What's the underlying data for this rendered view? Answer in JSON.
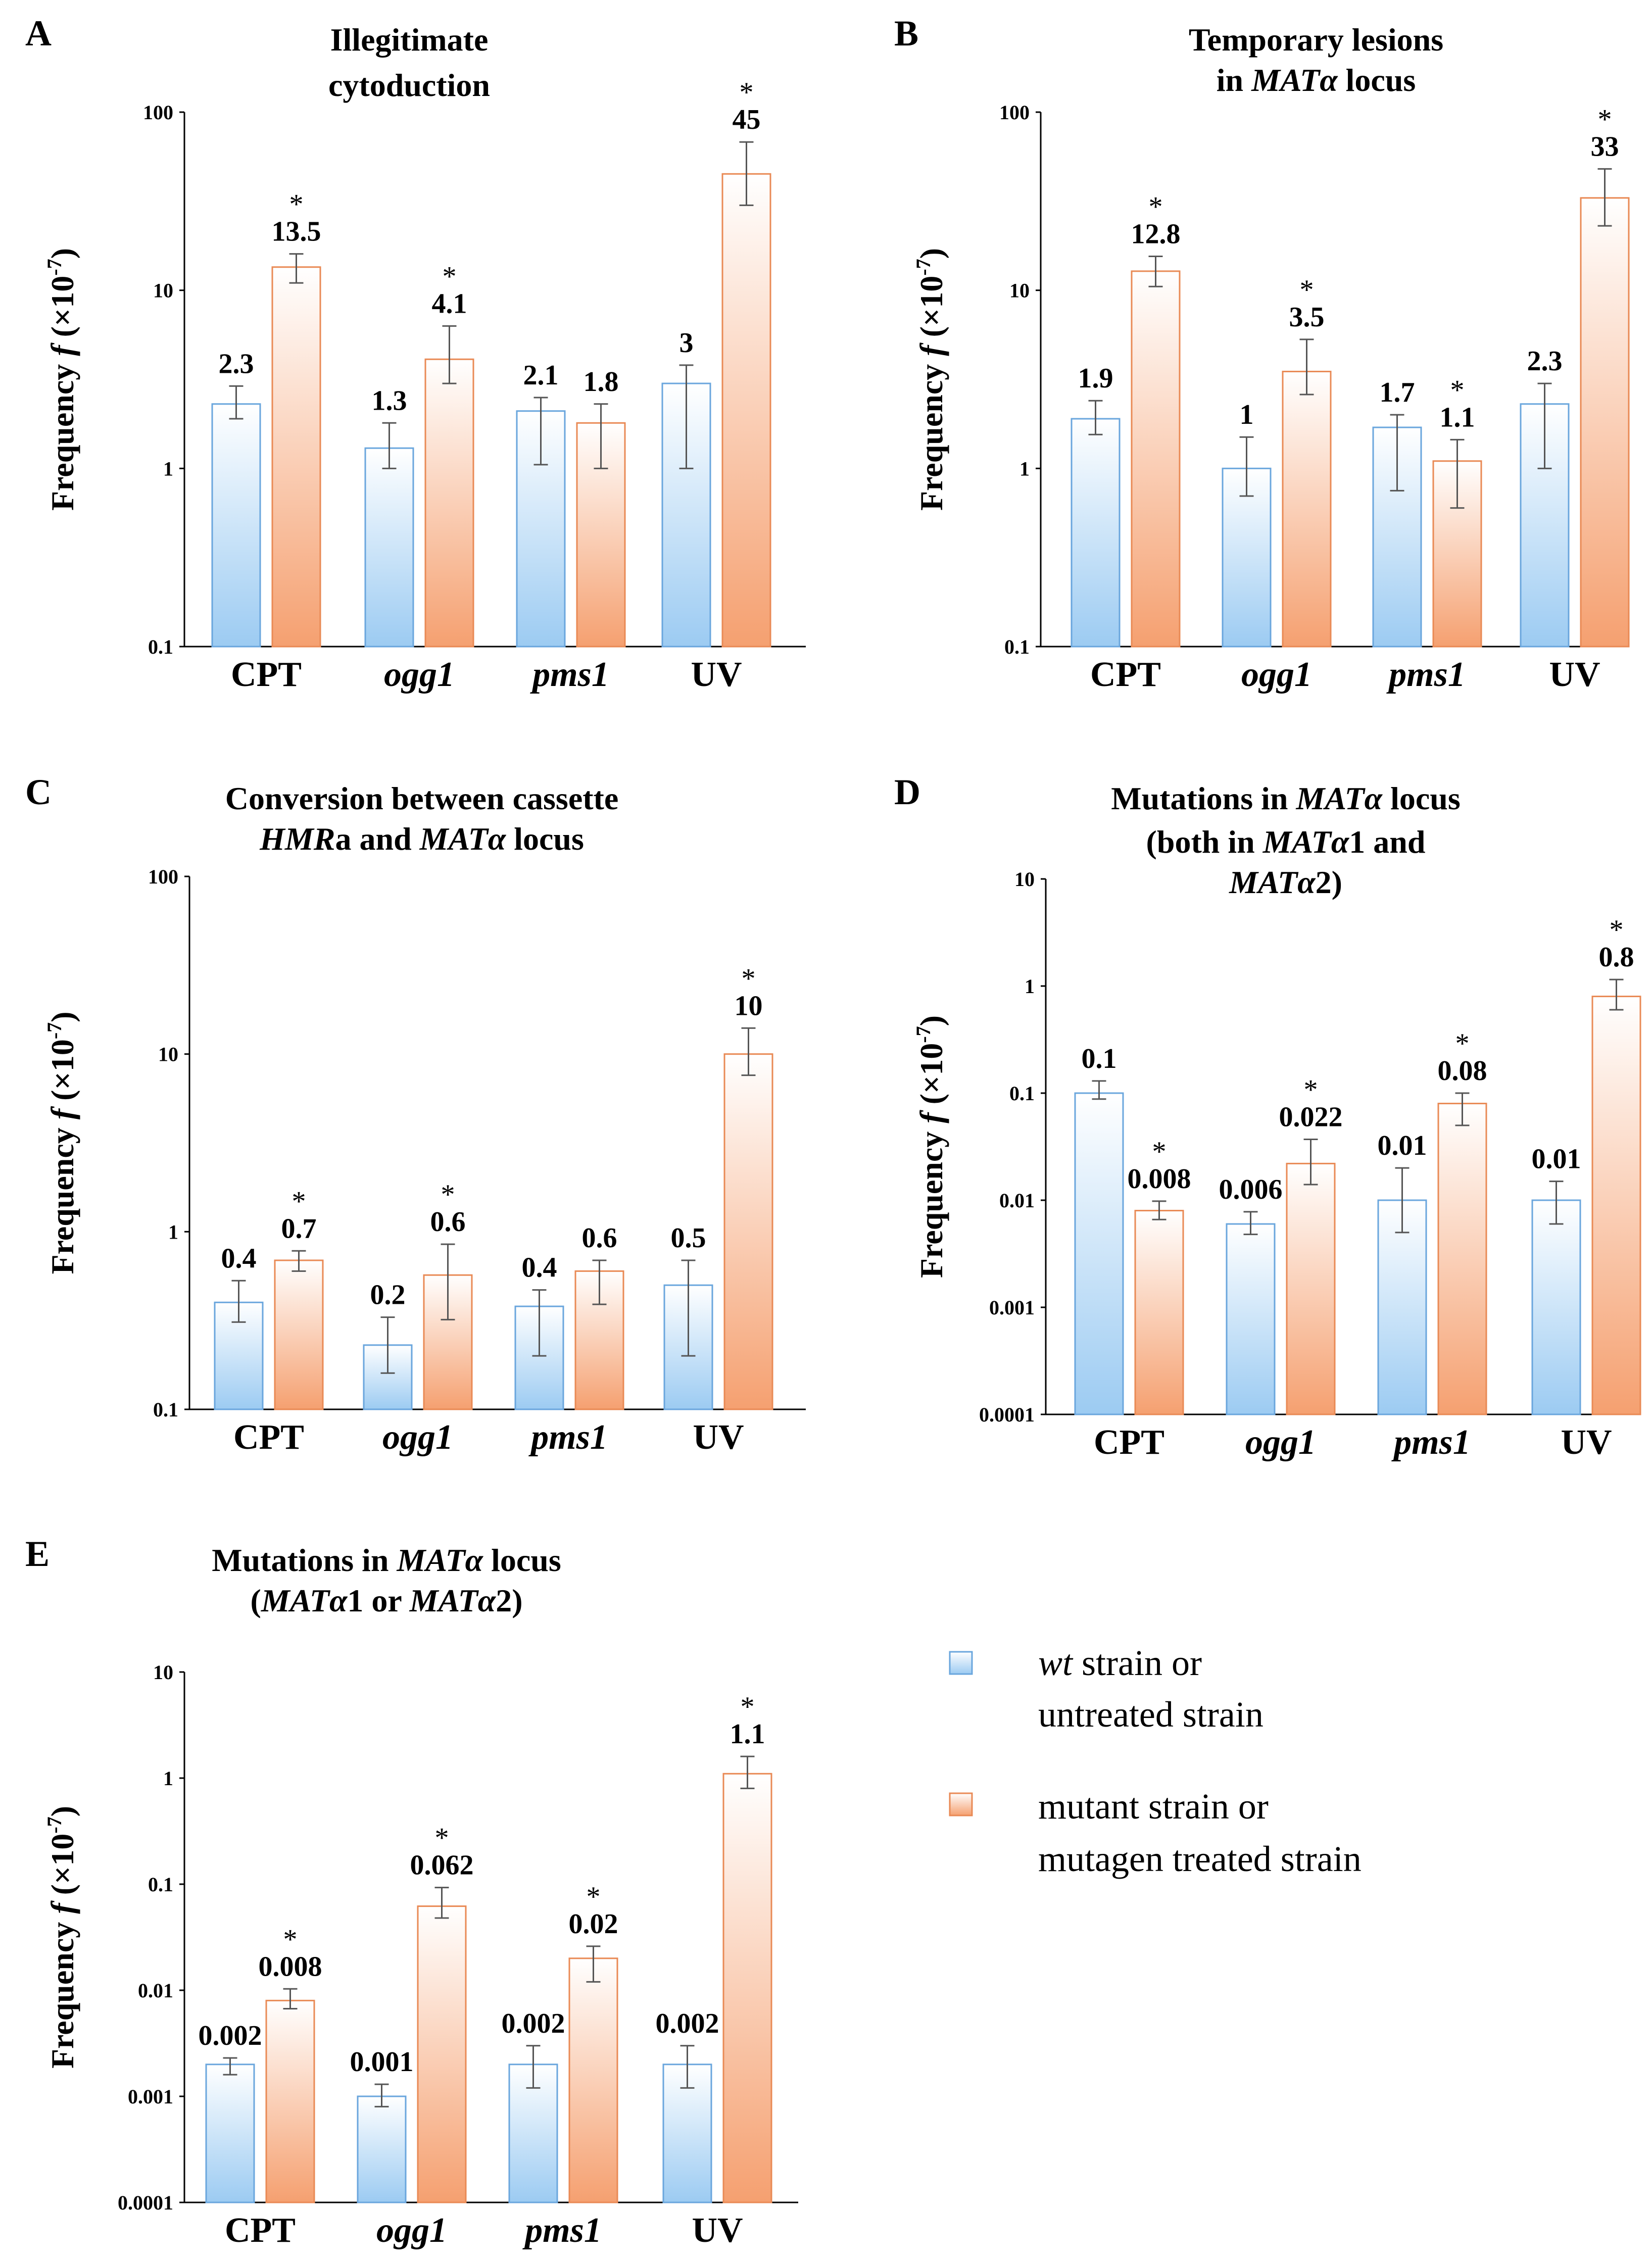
{
  "legend": {
    "wt_line1_italic": "wt",
    "wt_line1_rest": " strain or",
    "wt_line2": "untreated strain",
    "mut_line1": "mutant strain or",
    "mut_line2": "mutagen treated strain",
    "wt_color": "#9ccbf2",
    "mut_color": "#f5a070"
  },
  "significance_mark": "*",
  "chart_data": [
    {
      "id": "A",
      "type": "bar",
      "scale": "log",
      "title_lines": [
        [
          {
            "text": "Illegitimate"
          }
        ],
        [
          {
            "text": "cytoduction"
          }
        ]
      ],
      "ylabel": "Frequency f (×10-7)",
      "yticks": [
        "0.1",
        "1",
        "10",
        "100"
      ],
      "ylim": [
        0.1,
        100
      ],
      "categories": [
        {
          "label": "CPT",
          "italic": false
        },
        {
          "label": "ogg1",
          "italic": true
        },
        {
          "label": "pms1",
          "italic": true
        },
        {
          "label": "UV",
          "italic": false
        }
      ],
      "series": [
        {
          "name": "wt strain or untreated strain",
          "values": [
            2.3,
            1.3,
            2.1,
            3
          ],
          "labels": [
            "2.3",
            "1.3",
            "2.1",
            "3"
          ],
          "err_low": [
            1.9,
            1.0,
            1.05,
            1.0
          ],
          "err_high": [
            2.9,
            1.8,
            2.5,
            3.8
          ],
          "stars": [
            false,
            false,
            false,
            false
          ]
        },
        {
          "name": "mutant strain or mutagen treated strain",
          "values": [
            13.5,
            4.1,
            1.8,
            45
          ],
          "labels": [
            "13.5",
            "4.1",
            "1.8",
            "45"
          ],
          "err_low": [
            11,
            3.0,
            1.0,
            30
          ],
          "err_high": [
            16,
            6.3,
            2.3,
            68
          ],
          "stars": [
            true,
            true,
            false,
            true
          ]
        }
      ]
    },
    {
      "id": "B",
      "type": "bar",
      "scale": "log",
      "title_lines": [
        [
          {
            "text": "Temporary lesions"
          }
        ],
        [
          {
            "text": "in "
          },
          {
            "text": "MATα",
            "italic": true
          },
          {
            "text": " locus"
          }
        ]
      ],
      "ylabel": "Frequency f (×10-7)",
      "yticks": [
        "0.1",
        "1",
        "10",
        "100"
      ],
      "ylim": [
        0.1,
        100
      ],
      "categories": [
        {
          "label": "CPT",
          "italic": false
        },
        {
          "label": "ogg1",
          "italic": true
        },
        {
          "label": "pms1",
          "italic": true
        },
        {
          "label": "UV",
          "italic": false
        }
      ],
      "series": [
        {
          "name": "wt strain or untreated strain",
          "values": [
            1.9,
            1,
            1.7,
            2.3
          ],
          "labels": [
            "1.9",
            "1",
            "1.7",
            "2.3"
          ],
          "err_low": [
            1.55,
            0.7,
            0.75,
            1.0
          ],
          "err_high": [
            2.4,
            1.5,
            2.0,
            3.0
          ],
          "stars": [
            false,
            false,
            false,
            false
          ]
        },
        {
          "name": "mutant strain or mutagen treated strain",
          "values": [
            12.8,
            3.5,
            1.1,
            33
          ],
          "labels": [
            "12.8",
            "3.5",
            "1.1",
            "33"
          ],
          "err_low": [
            10.5,
            2.6,
            0.6,
            23
          ],
          "err_high": [
            15.5,
            5.3,
            1.45,
            48
          ],
          "stars": [
            true,
            true,
            true,
            true
          ]
        }
      ]
    },
    {
      "id": "C",
      "type": "bar",
      "scale": "log",
      "title_lines": [
        [
          {
            "text": "Conversion between cassette"
          }
        ],
        [
          {
            "text": "HMR",
            "italic": true
          },
          {
            "text": "a and "
          },
          {
            "text": "MATα",
            "italic": true
          },
          {
            "text": " locus"
          }
        ]
      ],
      "ylabel": "Frequency f (×10-7)",
      "yticks": [
        "0.1",
        "1",
        "10",
        "100"
      ],
      "ylim": [
        0.1,
        100
      ],
      "categories": [
        {
          "label": "CPT",
          "italic": false
        },
        {
          "label": "ogg1",
          "italic": true
        },
        {
          "label": "pms1",
          "italic": true
        },
        {
          "label": "UV",
          "italic": false
        }
      ],
      "series": [
        {
          "name": "wt strain or untreated strain",
          "values": [
            0.4,
            0.23,
            0.38,
            0.5
          ],
          "labels": [
            "0.4",
            "0.2",
            "0.4",
            "0.5"
          ],
          "err_low": [
            0.31,
            0.16,
            0.2,
            0.2
          ],
          "err_high": [
            0.53,
            0.33,
            0.47,
            0.69
          ],
          "stars": [
            false,
            false,
            false,
            false
          ]
        },
        {
          "name": "mutant strain or mutagen treated strain",
          "values": [
            0.69,
            0.57,
            0.6,
            10
          ],
          "labels": [
            "0.7",
            "0.6",
            "0.6",
            "10"
          ],
          "err_low": [
            0.6,
            0.32,
            0.39,
            7.6
          ],
          "err_high": [
            0.78,
            0.85,
            0.69,
            14
          ],
          "stars": [
            true,
            true,
            false,
            true
          ]
        }
      ]
    },
    {
      "id": "D",
      "type": "bar",
      "scale": "log",
      "title_lines": [
        [
          {
            "text": "Mutations in "
          },
          {
            "text": "MATα",
            "italic": true
          },
          {
            "text": " locus"
          }
        ],
        [
          {
            "text": "(both in "
          },
          {
            "text": "MATα",
            "italic": true
          },
          {
            "text": "1 and"
          }
        ],
        [
          {
            "text": "MATα",
            "italic": true
          },
          {
            "text": "2)"
          }
        ]
      ],
      "ylabel": "Frequency f (×10-7)",
      "yticks": [
        "0.0001",
        "0.001",
        "0.01",
        "0.1",
        "1",
        "10"
      ],
      "ylim": [
        0.0001,
        10
      ],
      "categories": [
        {
          "label": "CPT",
          "italic": false
        },
        {
          "label": "ogg1",
          "italic": true
        },
        {
          "label": "pms1",
          "italic": true
        },
        {
          "label": "UV",
          "italic": false
        }
      ],
      "series": [
        {
          "name": "wt strain or untreated strain",
          "values": [
            0.1,
            0.006,
            0.01,
            0.01
          ],
          "labels": [
            "0.1",
            "0.006",
            "0.01",
            "0.01"
          ],
          "err_low": [
            0.088,
            0.0048,
            0.005,
            0.006
          ],
          "err_high": [
            0.13,
            0.0078,
            0.02,
            0.015
          ],
          "stars": [
            false,
            false,
            false,
            false
          ]
        },
        {
          "name": "mutant strain or mutagen treated strain",
          "values": [
            0.008,
            0.022,
            0.08,
            0.8
          ],
          "labels": [
            "0.008",
            "0.022",
            "0.08",
            "0.8"
          ],
          "err_low": [
            0.0066,
            0.014,
            0.05,
            0.6
          ],
          "err_high": [
            0.0098,
            0.037,
            0.1,
            1.15
          ],
          "stars": [
            true,
            true,
            true,
            true
          ]
        }
      ]
    },
    {
      "id": "E",
      "type": "bar",
      "scale": "log",
      "title_lines": [
        [
          {
            "text": "Mutations in "
          },
          {
            "text": "MATα",
            "italic": true
          },
          {
            "text": " locus"
          }
        ],
        [
          {
            "text": "("
          },
          {
            "text": "MATα",
            "italic": true
          },
          {
            "text": "1 or "
          },
          {
            "text": "MATα",
            "italic": true
          },
          {
            "text": "2)"
          }
        ]
      ],
      "ylabel": "Frequency f (×10-7)",
      "yticks": [
        "0.0001",
        "0.001",
        "0.01",
        "0.1",
        "1",
        "10"
      ],
      "ylim": [
        0.0001,
        10
      ],
      "categories": [
        {
          "label": "CPT",
          "italic": false
        },
        {
          "label": "ogg1",
          "italic": true
        },
        {
          "label": "pms1",
          "italic": true
        },
        {
          "label": "UV",
          "italic": false
        }
      ],
      "series": [
        {
          "name": "wt strain or untreated strain",
          "values": [
            0.002,
            0.001,
            0.002,
            0.002
          ],
          "labels": [
            "0.002",
            "0.001",
            "0.002",
            "0.002"
          ],
          "err_low": [
            0.0016,
            0.0008,
            0.0012,
            0.0012
          ],
          "err_high": [
            0.0023,
            0.0013,
            0.003,
            0.003
          ],
          "stars": [
            false,
            false,
            false,
            false
          ]
        },
        {
          "name": "mutant strain or mutagen treated strain",
          "values": [
            0.008,
            0.062,
            0.02,
            1.1
          ],
          "labels": [
            "0.008",
            "0.062",
            "0.02",
            "1.1"
          ],
          "err_low": [
            0.0067,
            0.048,
            0.012,
            0.8
          ],
          "err_high": [
            0.0103,
            0.093,
            0.026,
            1.6
          ],
          "stars": [
            true,
            true,
            true,
            true
          ]
        }
      ]
    }
  ]
}
